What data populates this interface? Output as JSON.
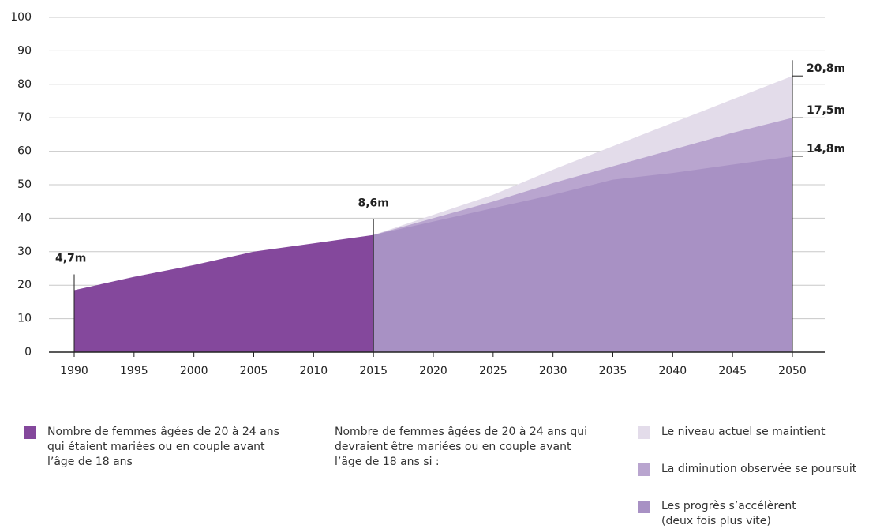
{
  "chart_data": {
    "type": "area",
    "x": [
      1990,
      1995,
      2000,
      2005,
      2010,
      2015,
      2020,
      2025,
      2030,
      2035,
      2040,
      2045,
      2050
    ],
    "xlim": [
      1990,
      2050
    ],
    "xticks": [
      1990,
      1995,
      2000,
      2005,
      2010,
      2015,
      2020,
      2025,
      2030,
      2035,
      2040,
      2045,
      2050
    ],
    "ylim": [
      0,
      100
    ],
    "yticks": [
      0,
      10,
      20,
      30,
      40,
      50,
      60,
      70,
      80,
      90,
      100
    ],
    "grid": true,
    "series": [
      {
        "name": "Nombre de femmes âgées de 20 à 24 ans\nqui étaient mariées ou en couple avant\nl’âge de 18 ans",
        "color": "#84489c",
        "values": [
          18.5,
          22.5,
          26,
          30,
          32.5,
          35,
          null,
          null,
          null,
          null,
          null,
          null,
          null
        ]
      },
      {
        "name": "Le niveau actuel se maintient",
        "color": "#e3dcea",
        "end_label": "20,8m",
        "values": [
          null,
          null,
          null,
          null,
          null,
          35,
          41,
          47,
          54.5,
          61.5,
          68.5,
          75.5,
          82.5
        ]
      },
      {
        "name": "La diminution observée se poursuit",
        "color": "#b9a5cf",
        "end_label": "17,5m",
        "values": [
          null,
          null,
          null,
          null,
          null,
          35,
          40,
          45,
          50.5,
          55.5,
          60.5,
          65.5,
          70
        ]
      },
      {
        "name": "Les progrès s’accélèrent\n(deux fois plus vite)",
        "color": "#a891c4",
        "end_label": "14,8m",
        "values": [
          null,
          null,
          null,
          null,
          null,
          35,
          39,
          43,
          47,
          51.5,
          53.5,
          56,
          58.5
        ]
      }
    ],
    "annotations": [
      {
        "text": "4,7m",
        "x": 1990
      },
      {
        "text": "8,6m",
        "x": 2015
      }
    ],
    "legend_note": "Nombre de femmes âgées de 20 à 24 ans qui\ndevraient être mariées ou en couple avant\nl’âge de 18 ans si :"
  }
}
